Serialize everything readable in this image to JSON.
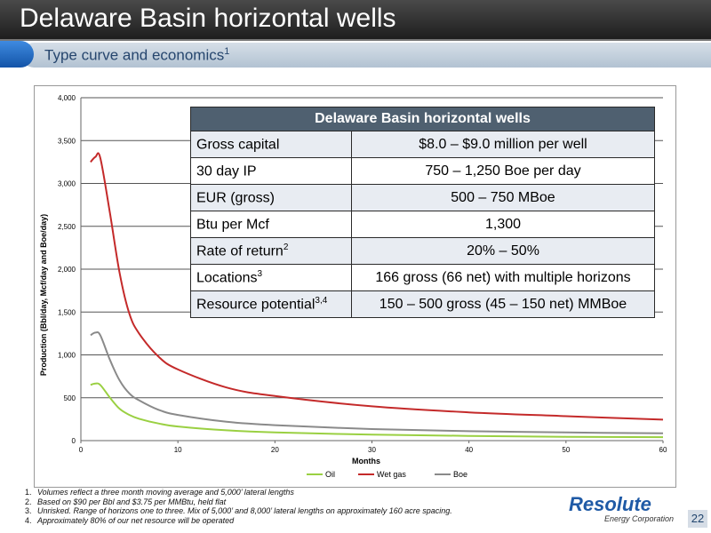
{
  "slide": {
    "title": "Delaware Basin horizontal wells",
    "subtitle": "Type curve and economics",
    "subtitle_sup": "1",
    "page_number": "22"
  },
  "chart_data": {
    "type": "line",
    "xlabel": "Months",
    "ylabel": "Production (Bbl/day, Mcf/day and Boe/day)",
    "xlim": [
      0,
      60
    ],
    "ylim": [
      0,
      4000
    ],
    "x_ticks": [
      "0",
      "10",
      "20",
      "30",
      "40",
      "50",
      "60"
    ],
    "y_ticks": [
      "0",
      "500",
      "1,000",
      "1,500",
      "2,000",
      "2,500",
      "3,000",
      "3,500",
      "4,000"
    ],
    "grid": "horizontal",
    "legend_position": "bottom",
    "series": [
      {
        "name": "Oil",
        "color": "#9ad042",
        "points": [
          [
            1,
            650
          ],
          [
            1.5,
            665
          ],
          [
            2,
            650
          ],
          [
            3,
            500
          ],
          [
            4,
            370
          ],
          [
            5,
            300
          ],
          [
            6,
            255
          ],
          [
            8,
            200
          ],
          [
            10,
            165
          ],
          [
            15,
            120
          ],
          [
            20,
            95
          ],
          [
            30,
            70
          ],
          [
            40,
            55
          ],
          [
            50,
            45
          ],
          [
            60,
            40
          ]
        ]
      },
      {
        "name": "Wet gas",
        "color": "#c42a2a",
        "points": [
          [
            1,
            3250
          ],
          [
            1.5,
            3310
          ],
          [
            2,
            3300
          ],
          [
            3,
            2650
          ],
          [
            4,
            1950
          ],
          [
            5,
            1480
          ],
          [
            6,
            1250
          ],
          [
            8,
            980
          ],
          [
            10,
            830
          ],
          [
            15,
            620
          ],
          [
            20,
            520
          ],
          [
            30,
            400
          ],
          [
            40,
            330
          ],
          [
            50,
            285
          ],
          [
            60,
            245
          ]
        ]
      },
      {
        "name": "Boe",
        "color": "#8a8a8a",
        "points": [
          [
            1,
            1230
          ],
          [
            1.5,
            1260
          ],
          [
            2,
            1230
          ],
          [
            3,
            940
          ],
          [
            4,
            700
          ],
          [
            5,
            550
          ],
          [
            6,
            470
          ],
          [
            8,
            360
          ],
          [
            10,
            300
          ],
          [
            15,
            220
          ],
          [
            20,
            180
          ],
          [
            30,
            135
          ],
          [
            40,
            110
          ],
          [
            50,
            95
          ],
          [
            60,
            85
          ]
        ]
      }
    ]
  },
  "table": {
    "header": "Delaware Basin horizontal wells",
    "rows": [
      {
        "label": "Gross capital",
        "sup": "",
        "value": "$8.0 – $9.0 million per well"
      },
      {
        "label": "30 day IP",
        "sup": "",
        "value": "750 – 1,250 Boe per day"
      },
      {
        "label": "EUR (gross)",
        "sup": "",
        "value": "500 – 750 MBoe"
      },
      {
        "label": "Btu per Mcf",
        "sup": "",
        "value": "1,300"
      },
      {
        "label": "Rate of return",
        "sup": "2",
        "value": "20% – 50%"
      },
      {
        "label": "Locations",
        "sup": "3",
        "value": "166 gross (66 net) with multiple horizons"
      },
      {
        "label": "Resource potential",
        "sup": "3,4",
        "value": "150 – 500 gross (45 – 150 net) MMBoe"
      }
    ]
  },
  "footnotes": [
    {
      "num": "1.",
      "text": "Volumes reflect a three month moving average and 5,000’ lateral lengths"
    },
    {
      "num": "2.",
      "text": "Based on $90 per Bbl and $3.75 per MMBtu, held flat"
    },
    {
      "num": "3.",
      "text": "Unrisked. Range of horizons one to three. Mix of 5,000’ and 8,000’ lateral lengths on approximately 160 acre spacing."
    },
    {
      "num": "4.",
      "text": "Approximately 80% of our net resource will be operated"
    }
  ],
  "logo": {
    "name": "Resolute",
    "tagline": "Energy Corporation"
  }
}
